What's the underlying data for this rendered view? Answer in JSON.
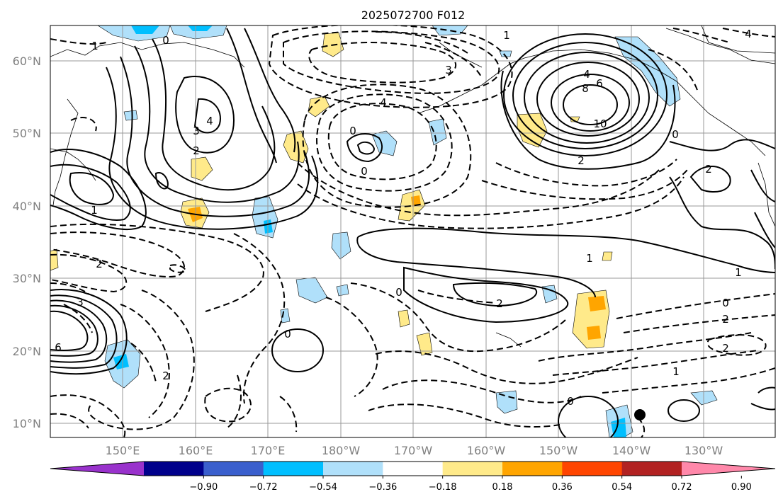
{
  "title": "2025072700 F012",
  "lat_ticks": [
    "60°N",
    "50°N",
    "40°N",
    "30°N",
    "20°N",
    "10°N"
  ],
  "lon_ticks": [
    "150°E",
    "160°E",
    "170°E",
    "180°W",
    "170°W",
    "160°W",
    "150°W",
    "140°W",
    "130°W"
  ],
  "colorbar": {
    "tick_labels": [
      "−0.90",
      "−0.72",
      "−0.54",
      "−0.36",
      "−0.18",
      "0.18",
      "0.36",
      "0.54",
      "0.72",
      "0.90"
    ],
    "bin_colors": [
      "#9932cc",
      "#00008b",
      "#3a5fcd",
      "#00bfff",
      "#b0e0fa",
      "#ffffff",
      "#ffea8a",
      "#ffa500",
      "#ff4500",
      "#b22222",
      "#ff88aa"
    ]
  },
  "contour_labels": {
    "pos_10": "10",
    "pos_8": "8",
    "pos_6": "6",
    "pos_4a": "4",
    "pos_4b": "4",
    "pos_2a": "2",
    "pos_2b": "2",
    "pos_2c": "2",
    "pos_2d": "2",
    "pos_3": "3",
    "pos_1a": "1",
    "pos_1b": "1",
    "pos_1c": "1",
    "neg_4a": "4",
    "neg_4b": "4",
    "neg_3a": "3",
    "neg_3b": "3",
    "neg_2a": "2",
    "neg_2b": "2",
    "neg_2c": "2",
    "neg_2d": "2",
    "neg_1a": "1",
    "neg_1b": "1",
    "neg_1c": "1",
    "zero_a": "0",
    "zero_b": "0",
    "zero_c": "0",
    "zero_d": "0",
    "zero_e": "0",
    "zero_f": "0",
    "zero_g": "0",
    "zero_h": "0",
    "six": "6"
  }
}
